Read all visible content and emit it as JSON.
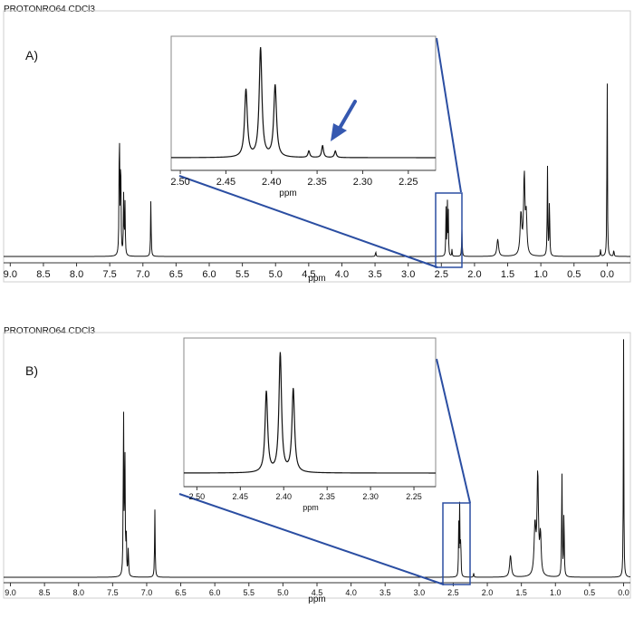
{
  "colors": {
    "spectrum": "#111111",
    "zoom_box": "#2b4ea2",
    "arrow": "#3558b0",
    "axis": "#333333"
  },
  "chart_data": [
    {
      "type": "line",
      "name": "spectrum-A",
      "title": "PROTONRO64 CDCl3",
      "panel_label": "A)",
      "xlabel": "ppm",
      "xlim": [
        9.1,
        -0.35
      ],
      "x_ticks": [
        "9.0",
        "8.5",
        "8.0",
        "7.5",
        "7.0",
        "6.5",
        "6.0",
        "5.5",
        "5.0",
        "4.5",
        "4.0",
        "3.5",
        "3.0",
        "2.5",
        "2.0",
        "1.5",
        "1.0",
        "0.5",
        "0.0"
      ],
      "zoom_region_ppm": [
        2.6,
        2.22
      ],
      "peaks": [
        {
          "ppm": 7.355,
          "height": 0.82,
          "width": 0.005
        },
        {
          "ppm": 7.335,
          "height": 0.63,
          "width": 0.005
        },
        {
          "ppm": 7.29,
          "height": 0.35,
          "width": 0.005
        },
        {
          "ppm": 7.27,
          "height": 0.3,
          "width": 0.005
        },
        {
          "ppm": 6.88,
          "height": 0.33,
          "width": 0.005
        },
        {
          "ppm": 3.49,
          "height": 0.03,
          "width": 0.005
        },
        {
          "ppm": 2.43,
          "height": 0.29,
          "width": 0.004
        },
        {
          "ppm": 2.41,
          "height": 0.34,
          "width": 0.004
        },
        {
          "ppm": 2.395,
          "height": 0.25,
          "width": 0.004
        },
        {
          "ppm": 2.34,
          "height": 0.04,
          "width": 0.004
        },
        {
          "ppm": 2.19,
          "height": 0.16,
          "width": 0.005
        },
        {
          "ppm": 1.65,
          "height": 0.1,
          "width": 0.015
        },
        {
          "ppm": 1.3,
          "height": 0.24,
          "width": 0.015
        },
        {
          "ppm": 1.25,
          "height": 0.46,
          "width": 0.012
        },
        {
          "ppm": 1.22,
          "height": 0.22,
          "width": 0.012
        },
        {
          "ppm": 0.9,
          "height": 0.52,
          "width": 0.005
        },
        {
          "ppm": 0.87,
          "height": 0.35,
          "width": 0.005
        },
        {
          "ppm": 0.1,
          "height": 0.04,
          "width": 0.005
        },
        {
          "ppm": 0.0,
          "height": 1.2,
          "width": 0.004
        },
        {
          "ppm": -0.1,
          "height": 0.04,
          "width": 0.005
        }
      ],
      "inset": {
        "xlabel": "ppm",
        "xlim": [
          2.51,
          2.22
        ],
        "x_ticks": [
          "2.50",
          "2.45",
          "2.40",
          "2.35",
          "2.30",
          "2.25"
        ],
        "annotation": "arrow pointing to small peaks near 2.35 ppm",
        "peaks": [
          {
            "ppm": 2.428,
            "height": 0.62,
            "width": 0.0018
          },
          {
            "ppm": 2.412,
            "height": 1.0,
            "width": 0.0018
          },
          {
            "ppm": 2.396,
            "height": 0.66,
            "width": 0.0018
          },
          {
            "ppm": 2.359,
            "height": 0.06,
            "width": 0.0012
          },
          {
            "ppm": 2.344,
            "height": 0.11,
            "width": 0.0012
          },
          {
            "ppm": 2.33,
            "height": 0.06,
            "width": 0.0012
          }
        ]
      }
    },
    {
      "type": "line",
      "name": "spectrum-B",
      "title": "PROTONRO64 CDCl3",
      "panel_label": "B)",
      "xlabel": "ppm",
      "xlim": [
        9.1,
        -0.1
      ],
      "x_ticks": [
        "9.0",
        "8.5",
        "8.0",
        "7.5",
        "7.0",
        "6.5",
        "6.0",
        "5.5",
        "5.0",
        "4.5",
        "4.0",
        "3.5",
        "3.0",
        "2.5",
        "2.0",
        "1.5",
        "1.0",
        "0.5",
        "0.0"
      ],
      "zoom_region_ppm": [
        2.55,
        2.22
      ],
      "peaks": [
        {
          "ppm": 7.34,
          "height": 0.86,
          "width": 0.005
        },
        {
          "ppm": 7.32,
          "height": 0.62,
          "width": 0.005
        },
        {
          "ppm": 7.3,
          "height": 0.2,
          "width": 0.005
        },
        {
          "ppm": 7.27,
          "height": 0.15,
          "width": 0.005
        },
        {
          "ppm": 6.88,
          "height": 0.34,
          "width": 0.005
        },
        {
          "ppm": 2.42,
          "height": 0.26,
          "width": 0.004
        },
        {
          "ppm": 2.405,
          "height": 0.37,
          "width": 0.004
        },
        {
          "ppm": 2.39,
          "height": 0.22,
          "width": 0.004
        },
        {
          "ppm": 2.2,
          "height": 0.02,
          "width": 0.005
        },
        {
          "ppm": 1.66,
          "height": 0.11,
          "width": 0.015
        },
        {
          "ppm": 1.3,
          "height": 0.25,
          "width": 0.015
        },
        {
          "ppm": 1.26,
          "height": 0.51,
          "width": 0.012
        },
        {
          "ppm": 1.22,
          "height": 0.2,
          "width": 0.012
        },
        {
          "ppm": 0.905,
          "height": 0.54,
          "width": 0.005
        },
        {
          "ppm": 0.875,
          "height": 0.35,
          "width": 0.005
        },
        {
          "ppm": 0.0,
          "height": 1.2,
          "width": 0.004
        }
      ],
      "inset": {
        "xlabel": "ppm",
        "xlim": [
          2.515,
          2.225
        ],
        "x_ticks": [
          "2.50",
          "2.45",
          "2.40",
          "2.35",
          "2.30",
          "2.25"
        ],
        "peaks": [
          {
            "ppm": 2.42,
            "height": 0.68,
            "width": 0.0018
          },
          {
            "ppm": 2.404,
            "height": 1.0,
            "width": 0.0018
          },
          {
            "ppm": 2.389,
            "height": 0.7,
            "width": 0.0018
          }
        ]
      }
    }
  ]
}
